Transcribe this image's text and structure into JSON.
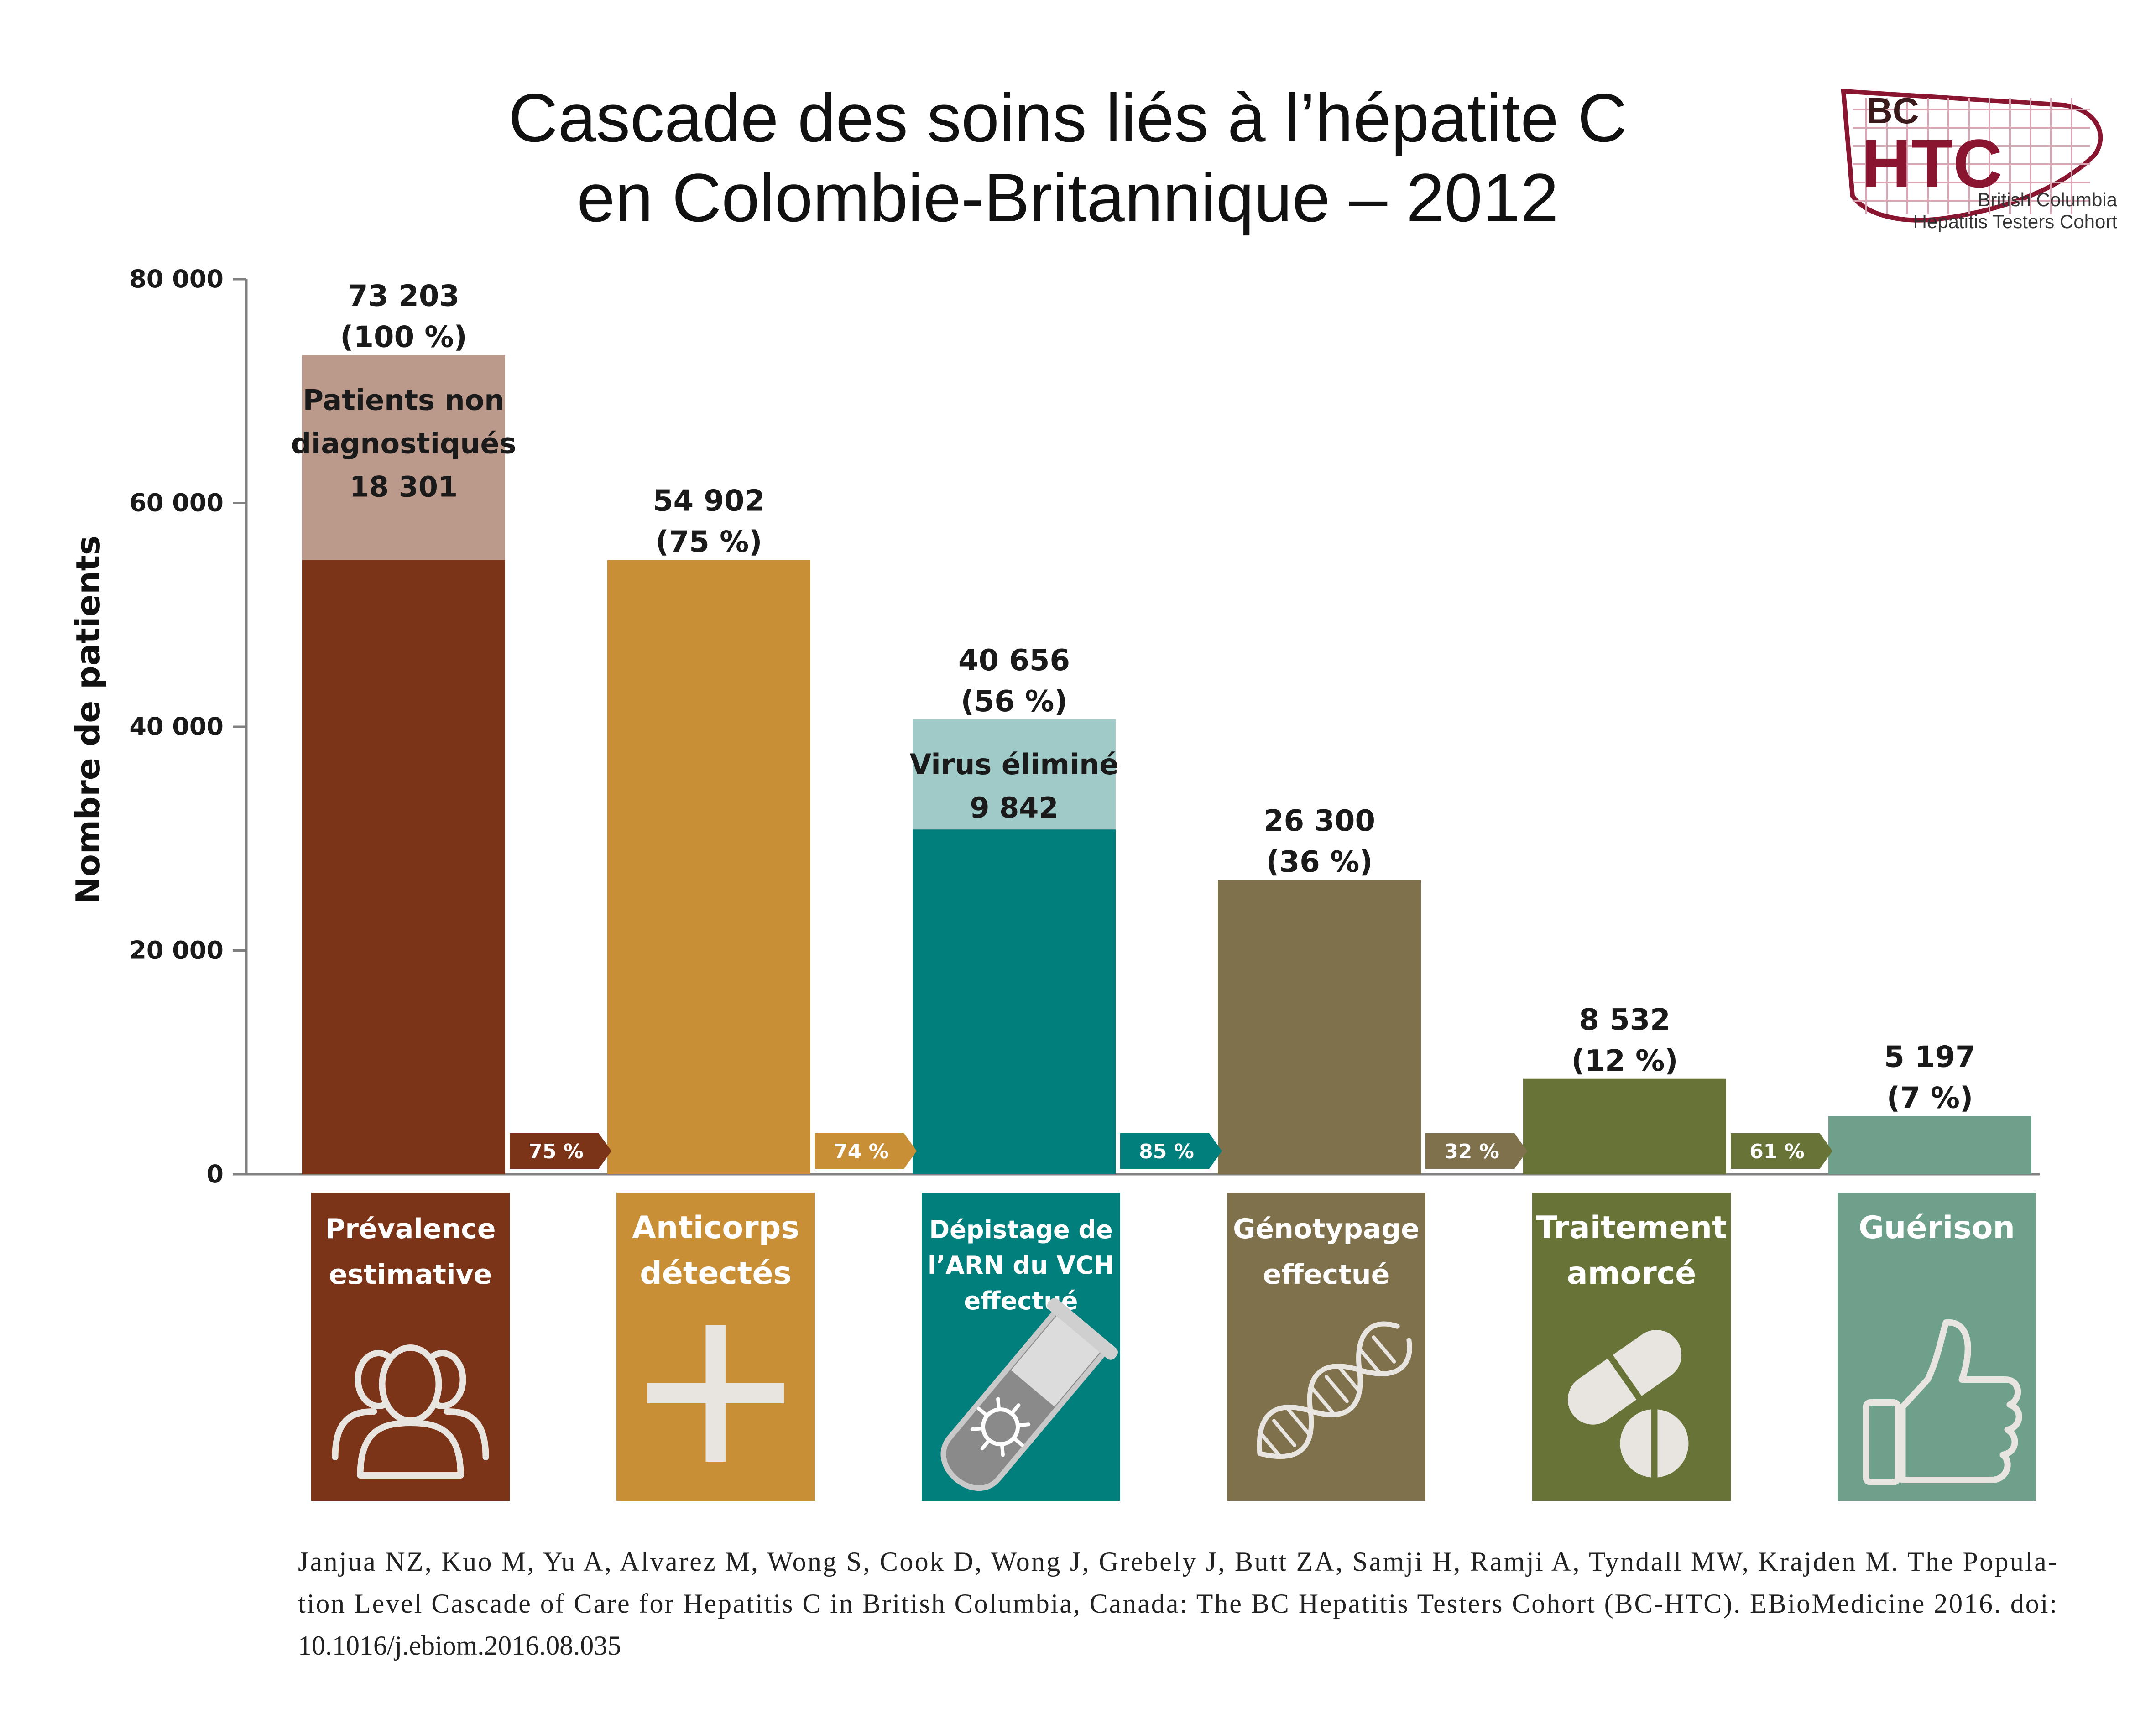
{
  "title_lines": [
    "Cascade des soins liés à l’hépatite C",
    "en Colombie-Britannique – 2012"
  ],
  "logo": {
    "bc": "BC",
    "htc": "HTC",
    "sub_lines": [
      "British Columbia",
      "Hepatitis Testers Cohort"
    ],
    "color": "#8a1530"
  },
  "citation_lines": [
    "Janjua NZ, Kuo M, Yu A, Alvarez M, Wong S, Cook D, Wong J, Grebely J, Butt ZA, Samji H, Ramji A, Tyndall MW, Krajden M. The Popula-",
    "tion Level Cascade of Care for Hepatitis C in British Columbia, Canada: The BC Hepatitis Testers Cohort (BC-HTC). EBioMedicine 2016. doi:",
    "10.1016/j.ebiom.2016.08.035"
  ],
  "chart_data": {
    "type": "bar",
    "ylabel": "Nombre de patients",
    "ylim": [
      0,
      80000
    ],
    "yticks": [
      0,
      20000,
      40000,
      60000,
      80000
    ],
    "ytick_labels": [
      "0",
      "20 000",
      "40 000",
      "60 000",
      "80 000"
    ],
    "grid": false,
    "categories": [
      [
        "Prévalence",
        "estimative"
      ],
      [
        "Anticorps",
        "détectés"
      ],
      [
        "Dépistage de",
        "l’ARN du VCH",
        "effectué"
      ],
      [
        "Génotypage",
        "effectué"
      ],
      [
        "Traitement",
        "amorcé"
      ],
      [
        "Guérison"
      ]
    ],
    "values": [
      73203,
      54902,
      40656,
      26300,
      8532,
      5197
    ],
    "value_labels": [
      "73 203",
      "54 902",
      "40 656",
      "26 300",
      "8 532",
      "5 197"
    ],
    "percent_labels": [
      "(100 %)",
      "(75 %)",
      "(56 %)",
      "(36 %)",
      "(12 %)",
      "(7 %)"
    ],
    "colors": [
      "#7b3418",
      "#c98f36",
      "#017f7c",
      "#80714d",
      "#687437",
      "#6ea08b"
    ],
    "icons": [
      "people-icon",
      "plus-icon",
      "test-tube-icon",
      "dna-icon",
      "pills-icon",
      "thumbs-up-icon"
    ],
    "segments": [
      {
        "bar": 0,
        "from": 54902,
        "to": 73203,
        "lines": [
          "Patients non",
          "diagnostiqués",
          "18 301"
        ],
        "color": "#bc9a8b"
      },
      {
        "bar": 2,
        "from": 30814,
        "to": 40656,
        "lines": [
          "Virus éliminé",
          "9 842"
        ],
        "color": "#9fcac8"
      }
    ],
    "transition_labels": [
      "75 %",
      "74 %",
      "85 %",
      "32 %",
      "61 %"
    ]
  }
}
